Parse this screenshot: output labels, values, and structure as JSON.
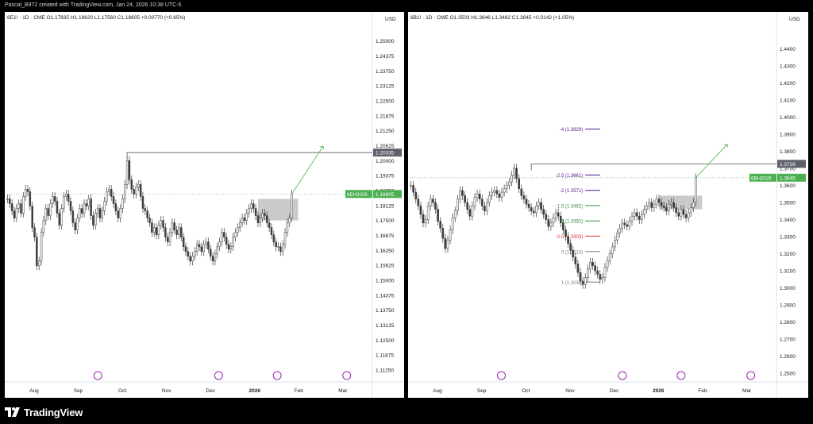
{
  "header": {
    "caption": "Pascal_B972 created with TradingView.com, Jan 24, 2026 10:38 UTC-5"
  },
  "footer": {
    "brand": "TradingView"
  },
  "colors": {
    "up": "#089981",
    "down": "#131722",
    "candle": "#3d3d3d",
    "price_line": "#4caf50",
    "label_bg": "#4caf50",
    "fib_purple": "#4a148c",
    "fib_green": "#388e3c",
    "fib_red": "#d32f2f",
    "zone": "#9e9e9e",
    "line_target": "#4caf50",
    "axis_text": "#131722",
    "marker": "#9c27b0"
  },
  "chart_data": [
    {
      "type": "candlestick",
      "symbol_line": "6E1! · 1D · CME  O1.17835  H1.18620  L1.17560  C1.18605  +0.00770 (+0.65%)",
      "currency": "USD",
      "ohlc": {
        "open": 1.17835,
        "high": 1.1862,
        "low": 1.1756,
        "close": 1.18605,
        "change": 0.0077,
        "change_pct": 0.65
      },
      "ylim": [
        1.1075,
        1.2575
      ],
      "y_ticks": [
        "1.25000",
        "1.24375",
        "1.23750",
        "1.23125",
        "1.22500",
        "1.21875",
        "1.21250",
        "1.20625",
        "1.20000",
        "1.19375",
        "1.18750",
        "1.18125",
        "1.17500",
        "1.16875",
        "1.16250",
        "1.15625",
        "1.15000",
        "1.14375",
        "1.13750",
        "1.13125",
        "1.12500",
        "1.11875",
        "1.11250"
      ],
      "x_ticks": [
        "Aug",
        "Sep",
        "Oct",
        "Nov",
        "Dec",
        "2026",
        "Feb",
        "Mar"
      ],
      "labels": {
        "price_tag": "6EH2026",
        "price_value": "1.18605",
        "level_value": "1.20335"
      },
      "level": 1.20335,
      "zone": [
        1.175,
        1.184
      ],
      "target": 1.206,
      "closes": [
        1.184,
        1.182,
        1.179,
        1.176,
        1.18,
        1.182,
        1.178,
        1.185,
        1.188,
        1.187,
        1.181,
        1.172,
        1.168,
        1.156,
        1.158,
        1.17,
        1.175,
        1.18,
        1.177,
        1.182,
        1.185,
        1.183,
        1.178,
        1.173,
        1.18,
        1.185,
        1.186,
        1.183,
        1.179,
        1.174,
        1.171,
        1.176,
        1.18,
        1.178,
        1.182,
        1.181,
        1.184,
        1.177,
        1.173,
        1.178,
        1.18,
        1.176,
        1.179,
        1.183,
        1.187,
        1.188,
        1.185,
        1.182,
        1.179,
        1.176,
        1.18,
        1.184,
        1.19,
        1.2,
        1.192,
        1.188,
        1.186,
        1.189,
        1.19,
        1.185,
        1.18,
        1.179,
        1.176,
        1.174,
        1.17,
        1.172,
        1.169,
        1.173,
        1.175,
        1.172,
        1.168,
        1.166,
        1.17,
        1.174,
        1.171,
        1.169,
        1.172,
        1.168,
        1.164,
        1.162,
        1.16,
        1.158,
        1.16,
        1.162,
        1.165,
        1.164,
        1.162,
        1.165,
        1.166,
        1.163,
        1.16,
        1.158,
        1.161,
        1.164,
        1.166,
        1.17,
        1.168,
        1.165,
        1.163,
        1.164,
        1.168,
        1.17,
        1.172,
        1.174,
        1.176,
        1.175,
        1.178,
        1.18,
        1.182,
        1.18,
        1.177,
        1.174,
        1.176,
        1.178,
        1.177,
        1.174,
        1.172,
        1.169,
        1.166,
        1.164,
        1.164,
        1.162,
        1.165,
        1.17,
        1.174,
        1.176,
        1.1861
      ]
    },
    {
      "type": "candlestick",
      "symbol_line": "6B1! · 1D · CME  O1.3503  H1.3646  L1.3482  C1.3645  +0.0142 (+1.05%)",
      "currency": "USD",
      "ohlc": {
        "open": 1.3503,
        "high": 1.3646,
        "low": 1.3482,
        "close": 1.3645,
        "change": 0.0142,
        "change_pct": 1.05
      },
      "ylim": [
        1.245,
        1.455
      ],
      "y_ticks": [
        "1.4400",
        "1.4300",
        "1.4200",
        "1.4100",
        "1.4000",
        "1.3900",
        "1.3800",
        "1.3700",
        "1.3600",
        "1.3500",
        "1.3400",
        "1.3300",
        "1.3200",
        "1.3100",
        "1.3000",
        "1.2900",
        "1.2800",
        "1.2700",
        "1.2600",
        "1.2500"
      ],
      "x_ticks": [
        "Aug",
        "Sep",
        "Oct",
        "Nov",
        "Dec",
        "2026",
        "Feb",
        "Mar"
      ],
      "labels": {
        "price_tag": "6BH2026",
        "price_value": "1.3645",
        "level_value": "1.3726"
      },
      "level": 1.3726,
      "zone": [
        1.346,
        1.354
      ],
      "target": 1.384,
      "fib_levels": [
        {
          "label": "-4 (1.3929)",
          "value": 1.3929,
          "color": "#4a148c"
        },
        {
          "label": "-2.5 (1.3661)",
          "value": 1.3661,
          "color": "#4a148c"
        },
        {
          "label": "-2 (1.3571)",
          "value": 1.3571,
          "color": "#4a148c"
        },
        {
          "label": "-1.5 (1.3482)",
          "value": 1.3482,
          "color": "#388e3c"
        },
        {
          "label": "-1 (1.3392)",
          "value": 1.3392,
          "color": "#388e3c"
        },
        {
          "label": "-0.5 (1.3303)",
          "value": 1.3303,
          "color": "#d32f2f"
        },
        {
          "label": "0 (1.3213)",
          "value": 1.3213,
          "color": "#787b86"
        },
        {
          "label": "1 (1.3034)",
          "value": 1.3034,
          "color": "#787b86"
        }
      ],
      "closes": [
        1.36,
        1.356,
        1.352,
        1.348,
        1.343,
        1.338,
        1.34,
        1.348,
        1.352,
        1.35,
        1.346,
        1.339,
        1.335,
        1.329,
        1.323,
        1.328,
        1.334,
        1.341,
        1.345,
        1.352,
        1.357,
        1.354,
        1.35,
        1.346,
        1.342,
        1.348,
        1.353,
        1.355,
        1.352,
        1.348,
        1.345,
        1.35,
        1.354,
        1.356,
        1.357,
        1.355,
        1.353,
        1.356,
        1.358,
        1.36,
        1.362,
        1.366,
        1.37,
        1.364,
        1.358,
        1.354,
        1.352,
        1.349,
        1.347,
        1.345,
        1.344,
        1.348,
        1.35,
        1.346,
        1.343,
        1.34,
        1.336,
        1.338,
        1.341,
        1.344,
        1.342,
        1.338,
        1.334,
        1.33,
        1.326,
        1.322,
        1.318,
        1.314,
        1.309,
        1.304,
        1.302,
        1.306,
        1.311,
        1.315,
        1.313,
        1.31,
        1.308,
        1.305,
        1.306,
        1.312,
        1.316,
        1.32,
        1.324,
        1.328,
        1.332,
        1.335,
        1.338,
        1.337,
        1.336,
        1.339,
        1.342,
        1.344,
        1.342,
        1.34,
        1.343,
        1.346,
        1.348,
        1.35,
        1.347,
        1.349,
        1.352,
        1.35,
        1.348,
        1.347,
        1.345,
        1.349,
        1.35,
        1.347,
        1.344,
        1.342,
        1.346,
        1.343,
        1.341,
        1.344,
        1.347,
        1.35,
        1.3645
      ]
    }
  ]
}
